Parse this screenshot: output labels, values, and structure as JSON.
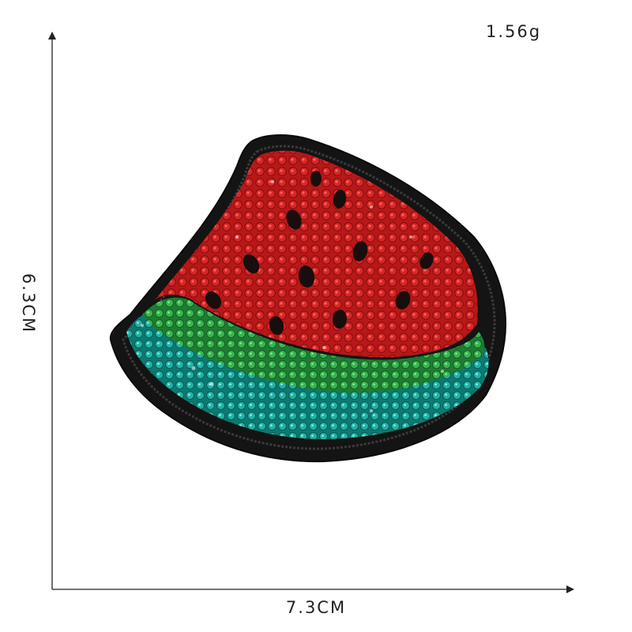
{
  "image": {
    "subject": "watermark-slice-sequin-patch",
    "background_color": "#ffffff"
  },
  "labels": {
    "weight": "1.56g",
    "width": "7.3CM",
    "height": "6.3CM"
  },
  "colors": {
    "patch_backing": "#141414",
    "flesh_red": "#c81d1d",
    "rind_green": "#2fa34a",
    "rind_teal": "#17a399",
    "seeds": "#1a0d0d",
    "axis": "#222222"
  }
}
